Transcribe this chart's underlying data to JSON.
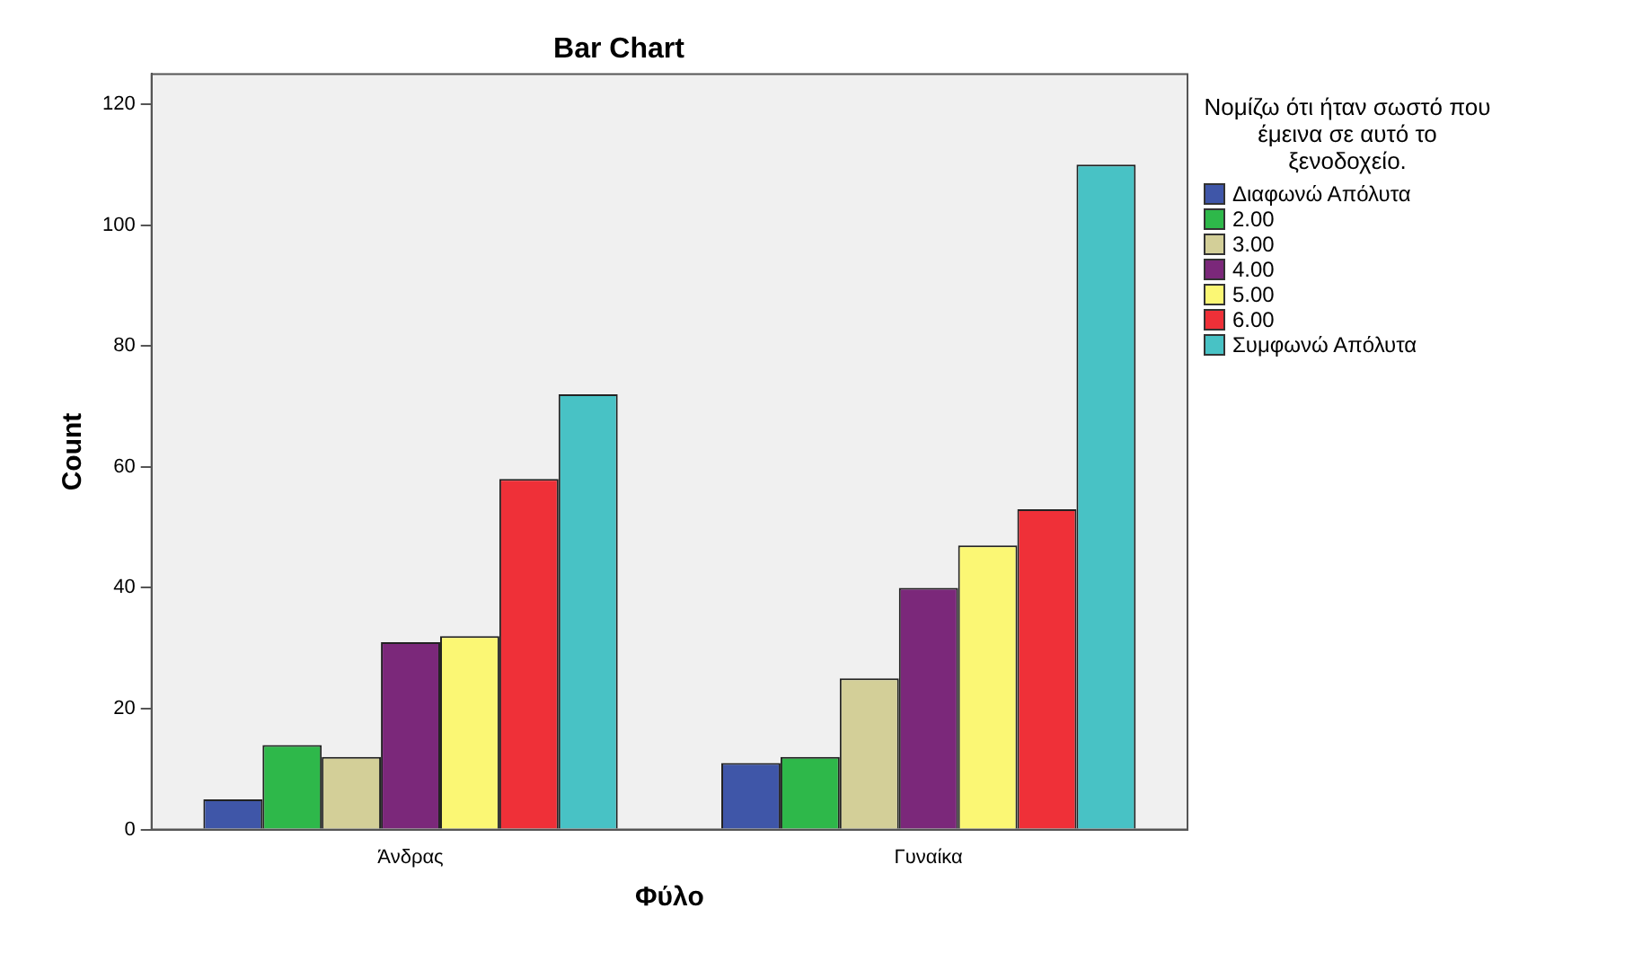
{
  "chart_data": {
    "type": "bar",
    "title": "Bar Chart",
    "xlabel": "Φύλο",
    "ylabel": "Count",
    "legend_title": "Νομίζω ότι ήταν σωστό που έμεινα σε αυτό το ξενοδοχείο.",
    "categories": [
      "Άνδρας",
      "Γυναίκα"
    ],
    "series": [
      {
        "name": "Διαφωνώ Απόλυτα",
        "color": "#3f56a8",
        "values": [
          5,
          11
        ]
      },
      {
        "name": "2.00",
        "color": "#2eb84a",
        "values": [
          14,
          12
        ]
      },
      {
        "name": "3.00",
        "color": "#d3cf98",
        "values": [
          12,
          25
        ]
      },
      {
        "name": "4.00",
        "color": "#7b287a",
        "values": [
          31,
          40
        ]
      },
      {
        "name": "5.00",
        "color": "#fbf774",
        "values": [
          32,
          47
        ]
      },
      {
        "name": "6.00",
        "color": "#ef3038",
        "values": [
          58,
          53
        ]
      },
      {
        "name": "Συμφωνώ Απόλυτα",
        "color": "#48c2c5",
        "values": [
          72,
          110
        ]
      }
    ],
    "ylim": [
      0,
      125
    ],
    "yticks": [
      0,
      20,
      40,
      60,
      80,
      100,
      120
    ],
    "grid": false,
    "legend": "right"
  }
}
